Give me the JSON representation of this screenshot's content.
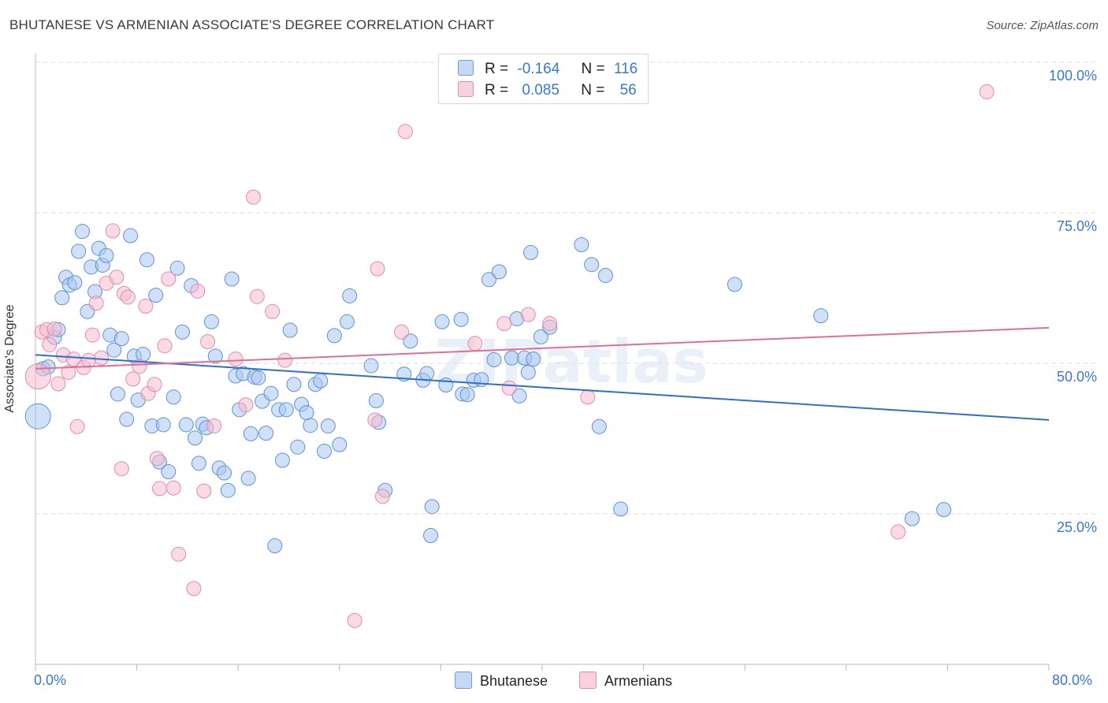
{
  "title": "BHUTANESE VS ARMENIAN ASSOCIATE'S DEGREE CORRELATION CHART",
  "source": "Source: ZipAtlas.com",
  "colors": {
    "blue": "#3a78c9",
    "blue_fill": "#a9c6ee",
    "pink": "#e07399",
    "pink_fill": "#f6bcd0",
    "grid": "#d9d9d9"
  },
  "legend": {
    "row1": {
      "r_label": "R =",
      "r_value": "-0.164",
      "n_label": "N =",
      "n_value": "116"
    },
    "row2": {
      "r_label": "R =",
      "r_value": "0.085",
      "n_label": "N =",
      "n_value": "56"
    }
  },
  "bottom_legend": {
    "series1": "Bhutanese",
    "series2": "Armenians"
  },
  "chart_data": {
    "type": "scatter",
    "title": "BHUTANESE VS ARMENIAN ASSOCIATE'S DEGREE CORRELATION CHART",
    "xlabel": "",
    "ylabel": "Associate's Degree",
    "xlim": [
      0,
      80
    ],
    "ylim": [
      0,
      100
    ],
    "x_tick_labels": [
      "0.0%",
      "80.0%"
    ],
    "y_tick_labels": [
      "100.0%",
      "75.0%",
      "50.0%",
      "25.0%"
    ],
    "y_ticks": [
      100,
      75,
      50,
      25
    ],
    "grid": true,
    "legend_placement": "top-center",
    "watermark": "ZIPatlas",
    "series": [
      {
        "name": "Bhutanese",
        "color": "#3a78c9",
        "trend": [
          [
            0,
            51.4
          ],
          [
            80,
            40.6
          ]
        ],
        "points": [
          [
            0.2,
            41.2
          ],
          [
            0.6,
            49.1
          ],
          [
            1.0,
            49.4
          ],
          [
            1.5,
            54.3
          ],
          [
            1.8,
            55.6
          ],
          [
            2.1,
            60.9
          ],
          [
            2.4,
            64.3
          ],
          [
            2.7,
            63.0
          ],
          [
            3.1,
            63.4
          ],
          [
            3.4,
            68.6
          ],
          [
            3.7,
            71.9
          ],
          [
            4.1,
            58.6
          ],
          [
            4.4,
            66.0
          ],
          [
            4.7,
            61.9
          ],
          [
            5.0,
            69.1
          ],
          [
            5.3,
            66.3
          ],
          [
            5.6,
            67.9
          ],
          [
            5.9,
            54.7
          ],
          [
            6.2,
            52.2
          ],
          [
            6.5,
            44.9
          ],
          [
            6.8,
            54.1
          ],
          [
            7.2,
            40.7
          ],
          [
            7.5,
            71.2
          ],
          [
            7.8,
            51.2
          ],
          [
            8.1,
            43.9
          ],
          [
            8.5,
            51.5
          ],
          [
            8.8,
            67.2
          ],
          [
            9.2,
            39.6
          ],
          [
            9.5,
            61.3
          ],
          [
            9.8,
            33.6
          ],
          [
            10.1,
            39.8
          ],
          [
            10.5,
            32.0
          ],
          [
            10.9,
            44.4
          ],
          [
            11.2,
            65.8
          ],
          [
            11.6,
            55.2
          ],
          [
            11.9,
            39.8
          ],
          [
            12.3,
            62.9
          ],
          [
            12.6,
            37.6
          ],
          [
            12.9,
            33.4
          ],
          [
            13.2,
            39.9
          ],
          [
            13.5,
            39.3
          ],
          [
            13.9,
            56.9
          ],
          [
            14.2,
            51.2
          ],
          [
            14.5,
            32.6
          ],
          [
            14.9,
            31.8
          ],
          [
            15.2,
            28.9
          ],
          [
            15.5,
            64.0
          ],
          [
            15.8,
            47.9
          ],
          [
            16.1,
            42.3
          ],
          [
            16.4,
            48.3
          ],
          [
            16.8,
            30.9
          ],
          [
            17.0,
            38.3
          ],
          [
            17.3,
            47.7
          ],
          [
            17.6,
            47.6
          ],
          [
            17.9,
            43.7
          ],
          [
            18.2,
            38.4
          ],
          [
            18.6,
            45.0
          ],
          [
            18.9,
            19.7
          ],
          [
            19.2,
            42.3
          ],
          [
            19.5,
            33.9
          ],
          [
            19.8,
            42.3
          ],
          [
            20.1,
            55.5
          ],
          [
            20.4,
            46.5
          ],
          [
            20.7,
            36.1
          ],
          [
            21.0,
            43.2
          ],
          [
            21.4,
            41.8
          ],
          [
            21.7,
            39.7
          ],
          [
            22.1,
            46.5
          ],
          [
            22.5,
            47.1
          ],
          [
            22.8,
            35.4
          ],
          [
            23.1,
            39.6
          ],
          [
            23.6,
            54.6
          ],
          [
            24.0,
            36.5
          ],
          [
            24.6,
            56.9
          ],
          [
            24.8,
            61.2
          ],
          [
            26.5,
            49.6
          ],
          [
            26.9,
            43.8
          ],
          [
            27.1,
            40.2
          ],
          [
            27.6,
            28.9
          ],
          [
            29.1,
            48.2
          ],
          [
            29.6,
            53.7
          ],
          [
            30.6,
            47.2
          ],
          [
            30.9,
            48.3
          ],
          [
            31.3,
            26.2
          ],
          [
            31.2,
            21.4
          ],
          [
            32.1,
            56.9
          ],
          [
            32.4,
            46.4
          ],
          [
            33.6,
            57.3
          ],
          [
            33.7,
            44.9
          ],
          [
            34.1,
            44.8
          ],
          [
            34.6,
            47.2
          ],
          [
            35.2,
            47.3
          ],
          [
            35.8,
            63.9
          ],
          [
            36.2,
            50.6
          ],
          [
            36.6,
            65.2
          ],
          [
            37.6,
            50.9
          ],
          [
            38.0,
            57.4
          ],
          [
            38.2,
            44.6
          ],
          [
            38.6,
            50.9
          ],
          [
            38.9,
            48.5
          ],
          [
            39.1,
            68.4
          ],
          [
            39.3,
            50.7
          ],
          [
            39.9,
            54.4
          ],
          [
            40.6,
            56.0
          ],
          [
            43.1,
            69.7
          ],
          [
            43.9,
            66.4
          ],
          [
            44.5,
            39.5
          ],
          [
            45.0,
            64.6
          ],
          [
            46.2,
            25.8
          ],
          [
            55.2,
            63.1
          ],
          [
            62.0,
            57.9
          ],
          [
            69.2,
            24.2
          ],
          [
            71.7,
            25.7
          ]
        ]
      },
      {
        "name": "Armenians",
        "color": "#e07399",
        "trend": [
          [
            0,
            49.1
          ],
          [
            80,
            55.9
          ]
        ],
        "points": [
          [
            0.2,
            47.8
          ],
          [
            0.5,
            55.2
          ],
          [
            0.9,
            55.6
          ],
          [
            1.1,
            53.1
          ],
          [
            1.5,
            55.7
          ],
          [
            1.8,
            46.6
          ],
          [
            2.2,
            51.4
          ],
          [
            2.6,
            48.5
          ],
          [
            3.0,
            50.7
          ],
          [
            3.3,
            39.5
          ],
          [
            3.8,
            49.3
          ],
          [
            4.2,
            50.5
          ],
          [
            4.5,
            54.7
          ],
          [
            4.8,
            60.0
          ],
          [
            5.2,
            50.9
          ],
          [
            5.6,
            63.3
          ],
          [
            6.1,
            72.0
          ],
          [
            6.4,
            64.3
          ],
          [
            6.8,
            32.5
          ],
          [
            7.0,
            61.6
          ],
          [
            7.3,
            61.0
          ],
          [
            7.7,
            47.4
          ],
          [
            8.2,
            49.5
          ],
          [
            8.7,
            59.5
          ],
          [
            8.9,
            45.0
          ],
          [
            9.4,
            46.5
          ],
          [
            9.6,
            34.2
          ],
          [
            9.8,
            29.2
          ],
          [
            10.2,
            52.9
          ],
          [
            10.5,
            64.0
          ],
          [
            10.9,
            29.3
          ],
          [
            11.3,
            18.3
          ],
          [
            12.5,
            12.6
          ],
          [
            12.8,
            62.0
          ],
          [
            13.3,
            28.8
          ],
          [
            13.6,
            53.6
          ],
          [
            14.1,
            39.6
          ],
          [
            15.8,
            50.7
          ],
          [
            16.6,
            43.1
          ],
          [
            17.2,
            77.6
          ],
          [
            17.5,
            61.1
          ],
          [
            18.7,
            58.6
          ],
          [
            19.7,
            50.5
          ],
          [
            25.2,
            7.3
          ],
          [
            26.8,
            40.6
          ],
          [
            27.0,
            65.7
          ],
          [
            27.4,
            27.9
          ],
          [
            28.9,
            55.2
          ],
          [
            29.2,
            88.5
          ],
          [
            34.7,
            53.3
          ],
          [
            37.0,
            56.6
          ],
          [
            37.4,
            45.9
          ],
          [
            38.9,
            58.1
          ],
          [
            40.6,
            56.6
          ],
          [
            43.6,
            44.4
          ],
          [
            68.1,
            22.0
          ],
          [
            75.1,
            95.1
          ]
        ]
      }
    ]
  }
}
